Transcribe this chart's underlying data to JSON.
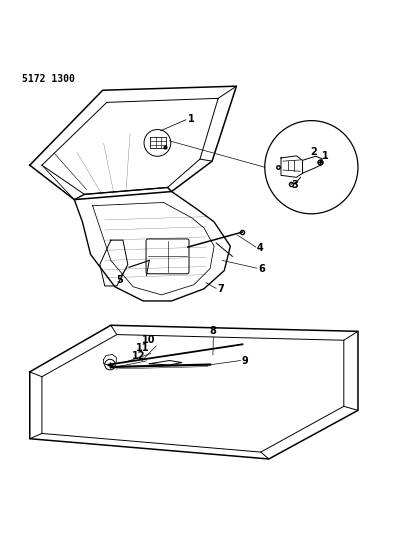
{
  "title_code": "5172 1300",
  "bg_color": "#ffffff",
  "line_color": "#000000",
  "fig_width": 4.08,
  "fig_height": 5.33,
  "dpi": 100
}
